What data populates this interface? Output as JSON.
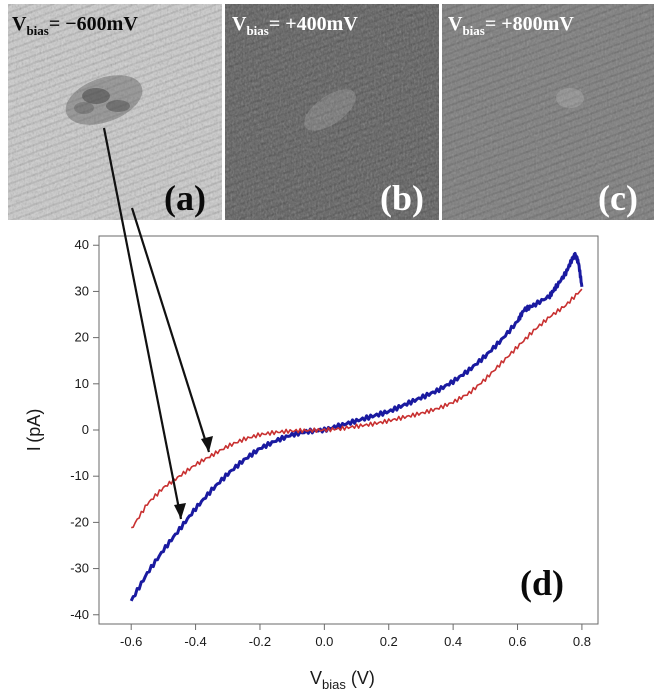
{
  "panels": [
    {
      "letter": "(a)",
      "title_main": "V",
      "title_sub": "bias",
      "title_rest": "= −600mV",
      "tone": "#c9c9c9"
    },
    {
      "letter": "(b)",
      "title_main": "V",
      "title_sub": "bias",
      "title_rest": "= +400mV",
      "tone": "#5a5a5a"
    },
    {
      "letter": "(c)",
      "title_main": "V",
      "title_sub": "bias",
      "title_rest": "= +800mV",
      "tone": "#7a7a7a"
    }
  ],
  "chart_letter": "(d)",
  "chart_data": {
    "type": "line",
    "xlabel_main": "V",
    "xlabel_sub": "bias",
    "xlabel_unit": " (V)",
    "ylabel": "I (pA)",
    "xlim": [
      -0.7,
      0.85
    ],
    "ylim": [
      -42,
      42
    ],
    "xticks": [
      -0.6,
      -0.4,
      -0.2,
      0.0,
      0.2,
      0.4,
      0.6,
      0.8
    ],
    "xtick_labels": [
      "-0.6",
      "-0.4",
      "-0.2",
      "0.0",
      "0.2",
      "0.4",
      "0.6",
      "0.8"
    ],
    "yticks": [
      -40,
      -30,
      -20,
      -10,
      0,
      10,
      20,
      30,
      40
    ],
    "ytick_labels": [
      "-40",
      "-30",
      "-20",
      "-10",
      "0",
      "10",
      "20",
      "30",
      "40"
    ],
    "grid": false,
    "series": [
      {
        "color": "#1a1aa0",
        "x": [
          -0.6,
          -0.55,
          -0.5,
          -0.45,
          -0.4,
          -0.35,
          -0.3,
          -0.25,
          -0.2,
          -0.15,
          -0.1,
          -0.05,
          0.0,
          0.05,
          0.1,
          0.15,
          0.2,
          0.25,
          0.3,
          0.35,
          0.4,
          0.45,
          0.5,
          0.55,
          0.6,
          0.62,
          0.65,
          0.7,
          0.72,
          0.75,
          0.77,
          0.78,
          0.79,
          0.8
        ],
        "y": [
          -37,
          -31,
          -26,
          -21.5,
          -17,
          -13,
          -9.5,
          -6.5,
          -4,
          -2.3,
          -1,
          -0.3,
          0,
          1,
          2,
          3,
          4,
          5.5,
          7,
          8.5,
          10.5,
          13,
          16,
          19.5,
          23.5,
          26,
          27,
          29,
          31,
          34,
          37,
          38,
          36,
          31
        ]
      },
      {
        "color": "#c83030",
        "x": [
          -0.6,
          -0.55,
          -0.5,
          -0.45,
          -0.4,
          -0.35,
          -0.3,
          -0.25,
          -0.2,
          -0.15,
          -0.1,
          -0.05,
          0.0,
          0.05,
          0.1,
          0.15,
          0.2,
          0.25,
          0.3,
          0.35,
          0.4,
          0.45,
          0.5,
          0.55,
          0.6,
          0.65,
          0.7,
          0.75,
          0.8
        ],
        "y": [
          -21.5,
          -16,
          -12.5,
          -10,
          -7.5,
          -5.5,
          -3.5,
          -2,
          -1,
          -0.5,
          -0.2,
          -0.1,
          0,
          0.3,
          0.8,
          1.3,
          2,
          2.8,
          3.6,
          4.6,
          6,
          8,
          11,
          14.5,
          18,
          21.5,
          24.5,
          27,
          30.5
        ]
      }
    ]
  }
}
